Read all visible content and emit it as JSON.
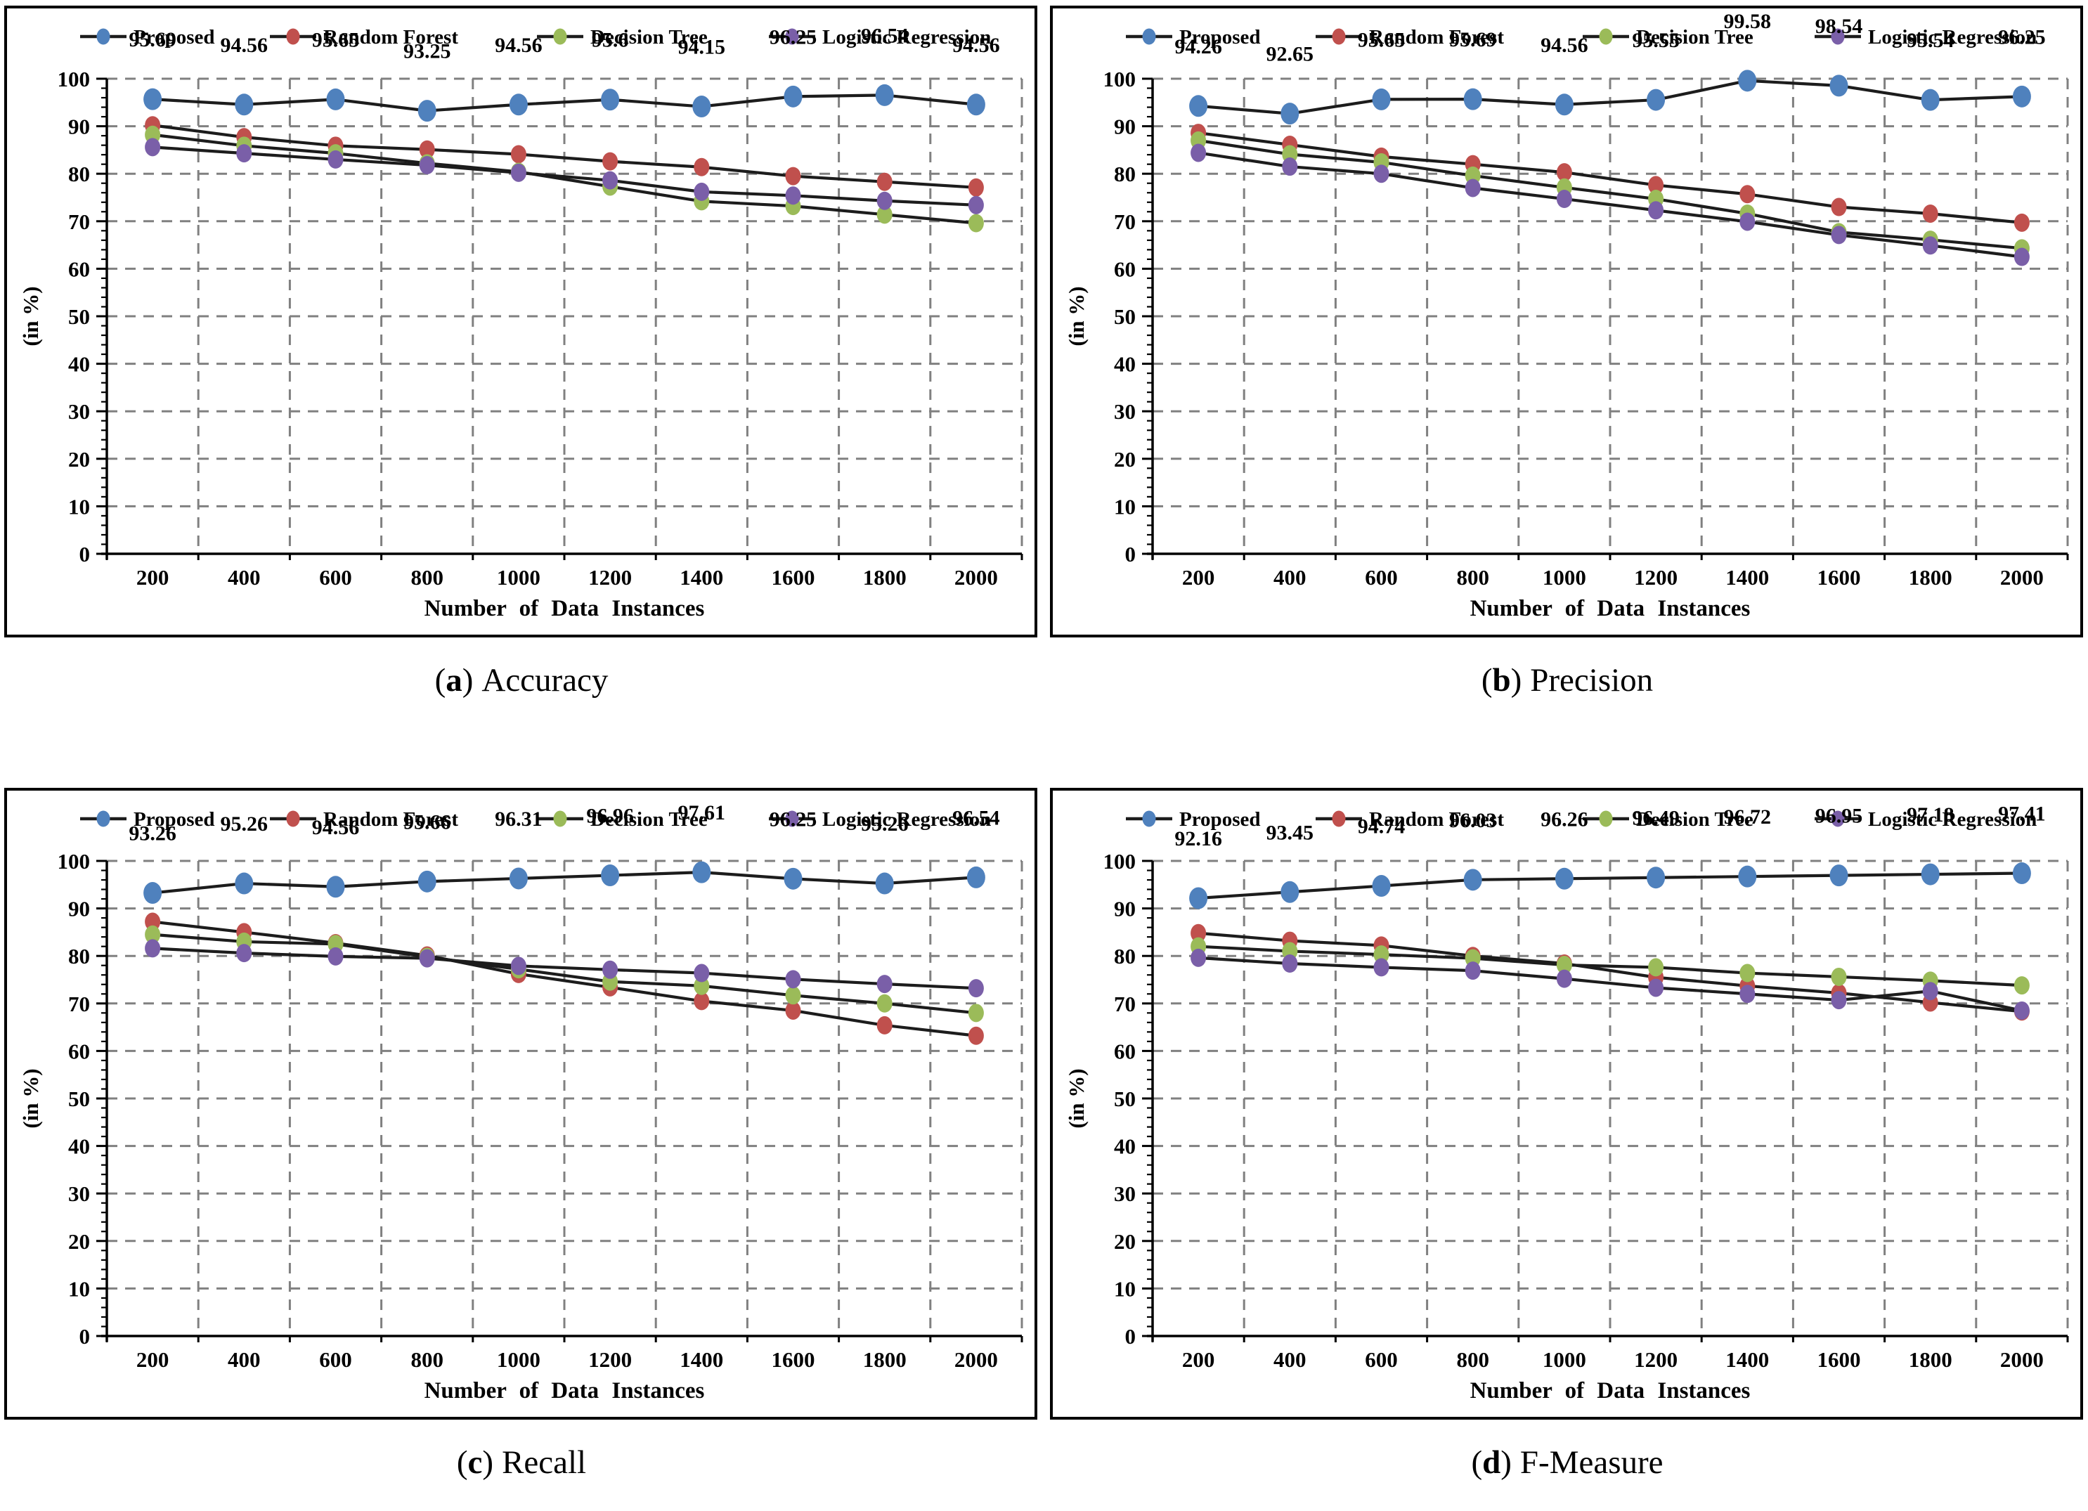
{
  "page": {
    "background": "#ffffff",
    "plot_border_color": "#000000",
    "grid_color": "#808080",
    "series_line_color": "#1c1c1c",
    "text_color": "#000000"
  },
  "legend": {
    "position": "top",
    "items": [
      {
        "label": "Proposed",
        "color": "#4F81BD"
      },
      {
        "label": "Random Forest",
        "color": "#C0504D"
      },
      {
        "label": "Decision Tree",
        "color": "#9BBB59"
      },
      {
        "label": "Logistic Regression",
        "color": "#7A5FA8"
      }
    ]
  },
  "chart_data": [
    {
      "type": "line",
      "caption": {
        "open": "(",
        "letter": "a",
        "close": ")",
        "label": "Accuracy"
      },
      "xlabel": "Number of Data Instances",
      "ylabel": "(in %)",
      "x": [
        200,
        400,
        600,
        800,
        1000,
        1200,
        1400,
        1600,
        1800,
        2000
      ],
      "ylim": [
        0,
        100
      ],
      "ytick_step": 10,
      "grid": true,
      "legend_position": "top",
      "series": [
        {
          "name": "Proposed",
          "color": "#4F81BD",
          "values": [
            95.69,
            94.56,
            95.65,
            93.25,
            94.56,
            95.6,
            94.15,
            96.25,
            96.54,
            94.56
          ],
          "data_labels": [
            "95.69",
            "94.56",
            "95.65",
            "93.25",
            "94.56",
            "95.6",
            "94.15",
            "96.25",
            "96.54",
            "94.56"
          ]
        },
        {
          "name": "Random Forest",
          "color": "#C0504D",
          "values": [
            90.2,
            87.7,
            85.9,
            85.1,
            84.1,
            82.6,
            81.4,
            79.5,
            78.3,
            77.1
          ]
        },
        {
          "name": "Decision Tree",
          "color": "#9BBB59",
          "values": [
            88.2,
            85.9,
            84.3,
            82.2,
            80.4,
            77.3,
            74.2,
            73.2,
            71.4,
            69.6
          ]
        },
        {
          "name": "Logistic Regression",
          "color": "#7A5FA8",
          "values": [
            85.6,
            84.3,
            83.0,
            81.8,
            80.2,
            78.6,
            76.2,
            75.4,
            74.3,
            73.4
          ]
        }
      ]
    },
    {
      "type": "line",
      "caption": {
        "open": "(",
        "letter": "b",
        "close": ")",
        "label": "Precision"
      },
      "xlabel": "Number of Data Instances",
      "ylabel": "(in %)",
      "x": [
        200,
        400,
        600,
        800,
        1000,
        1200,
        1400,
        1600,
        1800,
        2000
      ],
      "ylim": [
        0,
        100
      ],
      "ytick_step": 10,
      "grid": true,
      "legend_position": "top",
      "series": [
        {
          "name": "Proposed",
          "color": "#4F81BD",
          "values": [
            94.26,
            92.65,
            95.65,
            95.69,
            94.56,
            95.55,
            99.58,
            98.54,
            95.54,
            96.25
          ],
          "data_labels": [
            "94.26",
            "92.65",
            "95.65",
            "95.69",
            "94.56",
            "95.55",
            "99.58",
            "98.54",
            "95.54",
            "96.25"
          ]
        },
        {
          "name": "Random Forest",
          "color": "#C0504D",
          "values": [
            88.6,
            86.1,
            83.6,
            82.0,
            80.3,
            77.6,
            75.7,
            73.0,
            71.6,
            69.7
          ]
        },
        {
          "name": "Decision Tree",
          "color": "#9BBB59",
          "values": [
            87.0,
            84.1,
            82.4,
            79.6,
            77.1,
            74.7,
            71.6,
            67.7,
            66.1,
            64.3
          ]
        },
        {
          "name": "Logistic Regression",
          "color": "#7A5FA8",
          "values": [
            84.4,
            81.5,
            80.0,
            77.0,
            74.7,
            72.3,
            69.9,
            67.1,
            64.9,
            62.5
          ]
        }
      ]
    },
    {
      "type": "line",
      "caption": {
        "open": "(",
        "letter": "c",
        "close": ")",
        "label": "Recall"
      },
      "xlabel": "Number of Data Instances",
      "ylabel": "(in %)",
      "x": [
        200,
        400,
        600,
        800,
        1000,
        1200,
        1400,
        1600,
        1800,
        2000
      ],
      "ylim": [
        0,
        100
      ],
      "ytick_step": 10,
      "grid": true,
      "legend_position": "top",
      "series": [
        {
          "name": "Proposed",
          "color": "#4F81BD",
          "values": [
            93.26,
            95.26,
            94.56,
            95.66,
            96.31,
            96.96,
            97.61,
            96.25,
            95.26,
            96.54
          ],
          "data_labels": [
            "93.26",
            "95.26",
            "94.56",
            "95.66",
            "96.31",
            "96.96",
            "97.61",
            "96.25",
            "95.26",
            "96.54"
          ]
        },
        {
          "name": "Random Forest",
          "color": "#C0504D",
          "values": [
            87.2,
            85.0,
            82.7,
            80.1,
            76.2,
            73.4,
            70.5,
            68.5,
            65.4,
            63.2
          ]
        },
        {
          "name": "Decision Tree",
          "color": "#9BBB59",
          "values": [
            84.5,
            83.0,
            82.5,
            79.8,
            77.2,
            74.6,
            73.7,
            71.7,
            70.0,
            68.0
          ]
        },
        {
          "name": "Logistic Regression",
          "color": "#7A5FA8",
          "values": [
            81.6,
            80.6,
            79.9,
            79.5,
            77.9,
            77.1,
            76.4,
            75.1,
            74.1,
            73.2
          ]
        }
      ]
    },
    {
      "type": "line",
      "caption": {
        "open": "(",
        "letter": "d",
        "close": ")",
        "label": "F-Measure"
      },
      "xlabel": "Number of Data Instances",
      "ylabel": "(in %)",
      "x": [
        200,
        400,
        600,
        800,
        1000,
        1200,
        1400,
        1600,
        1800,
        2000
      ],
      "ylim": [
        0,
        100
      ],
      "ytick_step": 10,
      "grid": true,
      "legend_position": "top",
      "series": [
        {
          "name": "Proposed",
          "color": "#4F81BD",
          "values": [
            92.16,
            93.45,
            94.74,
            96.03,
            96.26,
            96.49,
            96.72,
            96.95,
            97.18,
            97.41
          ],
          "data_labels": [
            "92.16",
            "93.45",
            "94.74",
            "96.03",
            "96.26",
            "96.49",
            "96.72",
            "96.95",
            "97.18",
            "97.41"
          ]
        },
        {
          "name": "Random Forest",
          "color": "#C0504D",
          "values": [
            84.8,
            83.2,
            82.2,
            80.0,
            78.4,
            75.5,
            73.7,
            72.2,
            70.2,
            68.3
          ]
        },
        {
          "name": "Decision Tree",
          "color": "#9BBB59",
          "values": [
            82.0,
            81.0,
            80.3,
            79.5,
            78.1,
            77.6,
            76.4,
            75.6,
            74.8,
            73.8
          ]
        },
        {
          "name": "Logistic Regression",
          "color": "#7A5FA8",
          "values": [
            79.6,
            78.4,
            77.6,
            76.9,
            75.2,
            73.3,
            72.0,
            70.7,
            72.6,
            68.5
          ]
        }
      ]
    }
  ]
}
